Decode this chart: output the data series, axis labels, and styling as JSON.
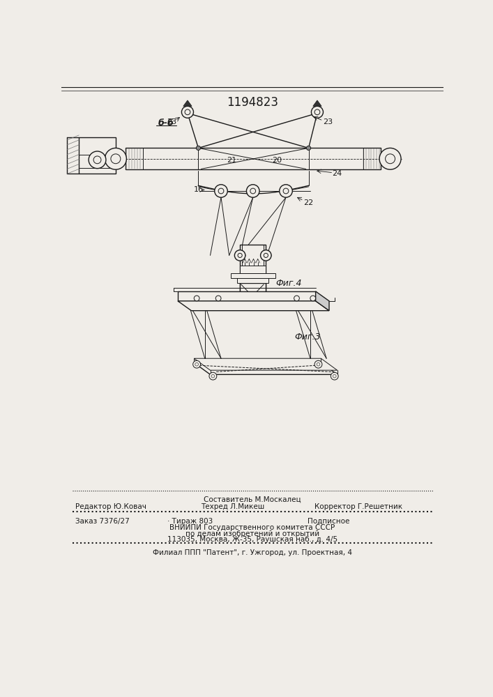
{
  "title": "1194823",
  "fig3_label": "Фиг.3",
  "fig4_label": "Фиг.4",
  "section_label": "б-б",
  "bg_color": "#f0ede8",
  "line_color": "#1a1a1a",
  "footer": {
    "line1_left": "Редактор Ю.Ковач",
    "line1_center": "Техред Л.Микеш",
    "line1_top": "Составитель М.Москалец",
    "line1_right": "Корректор Г.Решетник",
    "line2_left": "Заказ 7376/27",
    "line2_center": "· Тираж 803",
    "line2_right": "Подписное",
    "line3": "ВНИИПИ Государственного комитета СССР",
    "line4": "по делам изобретений и открытий",
    "line5": "113035, Москва, Ж-35, Раушская наб., д. 4/5",
    "line6": "Филиал ППП \"Патент\", г. Ужгород, ул. Проектная, 4"
  }
}
